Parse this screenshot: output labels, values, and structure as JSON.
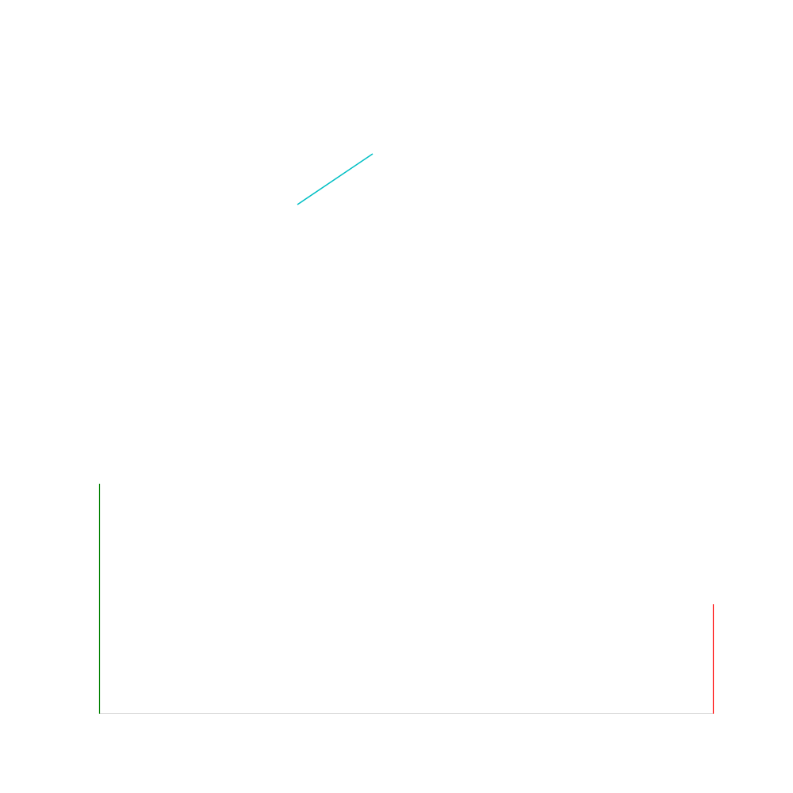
{
  "colors": {
    "background": "#ffffff",
    "diagonal_segment": "#00bfc4",
    "left_vertical_segment": "#008000",
    "right_vertical_segment": "#ff0000",
    "baseline": "#d3d3d3"
  }
}
